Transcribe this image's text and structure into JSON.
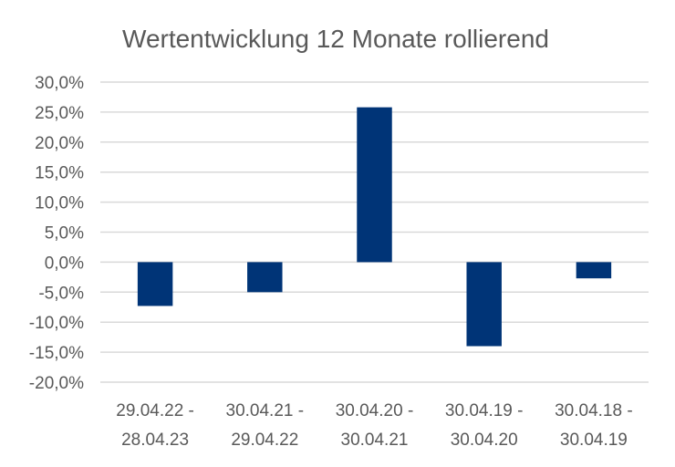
{
  "colors": {
    "bar": "#003477",
    "grid": "#d9d9d9",
    "text": "#595959"
  },
  "chart_data": {
    "type": "bar",
    "title": "Wertentwicklung 12 Monate rollierend",
    "xlabel": "",
    "ylabel": "",
    "ylim": [
      -20,
      30
    ],
    "yticks": [
      30,
      25,
      20,
      15,
      10,
      5,
      0,
      -5,
      -10,
      -15,
      -20
    ],
    "ytick_labels": [
      "30,0%",
      "25,0%",
      "20,0%",
      "15,0%",
      "10,0%",
      "5,0%",
      "0,0%",
      "-5,0%",
      "-10,0%",
      "-15,0%",
      "-20,0%"
    ],
    "grid": true,
    "legend": "none",
    "categories": [
      [
        "29.04.22 -",
        "28.04.23"
      ],
      [
        "30.04.21 -",
        "29.04.22"
      ],
      [
        "30.04.20 -",
        "30.04.21"
      ],
      [
        "30.04.19 -",
        "30.04.20"
      ],
      [
        "30.04.18 -",
        "30.04.19"
      ]
    ],
    "values": [
      -7.3,
      -5.0,
      25.8,
      -14.0,
      -2.7
    ]
  }
}
